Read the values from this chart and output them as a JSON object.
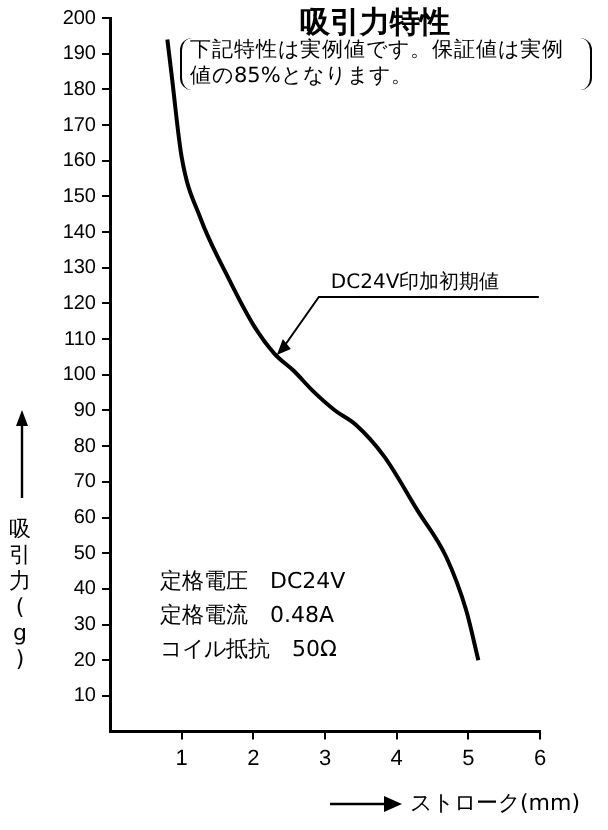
{
  "chart_data": {
    "type": "line",
    "title": "吸引力特性",
    "subtitle": "下記特性は実例値です。保証値は実例値の85%となります。",
    "xlabel": "ストローク(mm)",
    "ylabel": "吸引力(g)",
    "annotations": [
      {
        "text": "DC24V印加初期値",
        "x": 2.3,
        "y": 105
      },
      "定格電圧　DC24V",
      "定格電流　0.48A",
      "コイル抵抗　50Ω"
    ],
    "x": [
      0.8,
      0.86,
      1.0,
      1.26,
      1.63,
      2.0,
      2.29,
      2.57,
      2.83,
      3.14,
      3.43,
      3.83,
      4.29,
      4.69,
      4.97,
      5.14
    ],
    "series": [
      {
        "color": "#000000",
        "values": [
          194,
          184,
          161,
          144,
          128,
          114,
          106,
          101,
          95.5,
          90,
          86,
          77,
          62,
          49,
          34,
          20
        ]
      }
    ],
    "xlim": [
      0,
      6
    ],
    "ylim": [
      0,
      200
    ],
    "xticks": [
      1,
      2,
      3,
      4,
      5,
      6
    ],
    "yticks": [
      10,
      20,
      30,
      40,
      50,
      60,
      70,
      80,
      90,
      100,
      110,
      120,
      130,
      140,
      150,
      160,
      170,
      180,
      190,
      200
    ],
    "grid": false,
    "legend": false,
    "marker": "none",
    "line_style": "solid"
  }
}
